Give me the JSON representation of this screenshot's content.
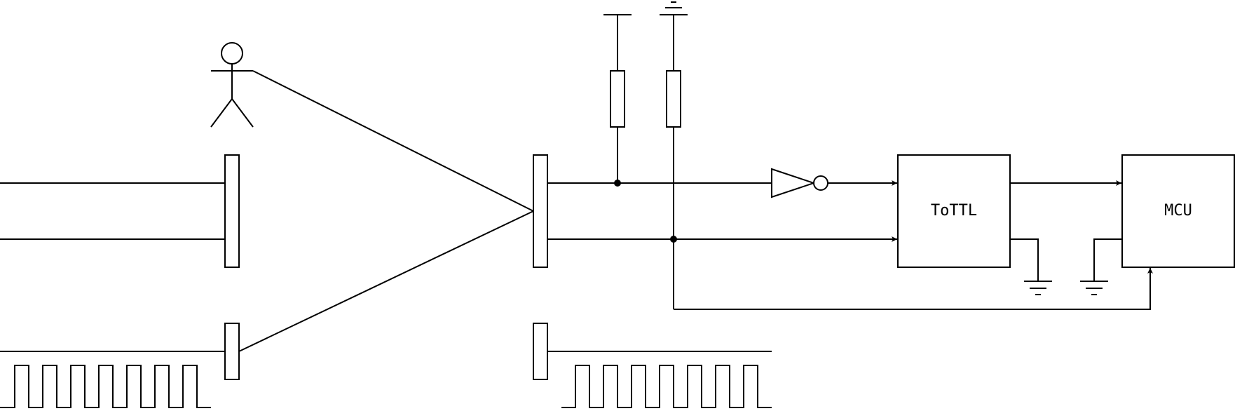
{
  "blocks": {
    "converter_label": "ToTTL",
    "mcu_label": "MCU"
  },
  "colors": {
    "stroke": "#000000",
    "background": "#ffffff"
  },
  "icons": {
    "user": "person-icon",
    "ground": "ground-icon",
    "supply": "supply-rail-icon",
    "resistor": "resistor-icon",
    "inverter": "not-gate-icon"
  }
}
